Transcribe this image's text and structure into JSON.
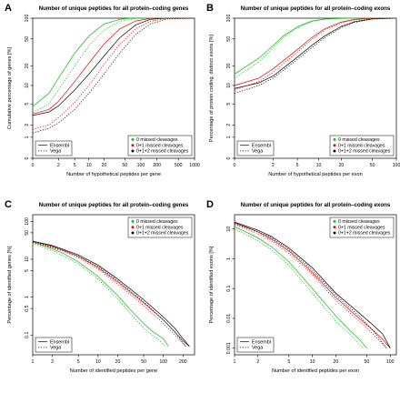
{
  "colors": {
    "series": [
      "#22bb22",
      "#dd1111",
      "#111111"
    ]
  },
  "legend_styles": {
    "ensembl": "solid",
    "vega": "dotted"
  },
  "chart_data": [
    {
      "panel": "A",
      "type": "line",
      "title": "Number of unique peptides for all protein–coding genes",
      "xlabel": "Number of hypothetical peptides per gene",
      "ylabel": "Cumulative percentage of genes [%]",
      "xscale": "log1p",
      "yscale": "log1p",
      "xlim": [
        0,
        1000
      ],
      "ylim": [
        0,
        100
      ],
      "xticks": [
        0,
        2,
        5,
        10,
        20,
        50,
        100,
        200,
        500,
        1000
      ],
      "yticks": [
        0,
        1,
        2,
        5,
        10,
        20,
        50,
        100
      ],
      "legend_position": "bottom",
      "legend_sources": [
        "Ensembl",
        "Vega"
      ],
      "legend_series": [
        "0 missed cleavages",
        "0+1 missed cleavages",
        "0+1+2 missed cleavages"
      ],
      "series": [
        {
          "name": "0 missed cleavages",
          "source": "Ensembl",
          "x": [
            0,
            1,
            2,
            5,
            10,
            20,
            40,
            60,
            100,
            200,
            1000
          ],
          "y": [
            4.5,
            7.5,
            13,
            31,
            55,
            82,
            96,
            99,
            100,
            100,
            100
          ]
        },
        {
          "name": "0+1 missed cleavages",
          "source": "Ensembl",
          "x": [
            0,
            1,
            2,
            5,
            10,
            20,
            40,
            80,
            150,
            300,
            1000
          ],
          "y": [
            3.3,
            4,
            5.5,
            11.5,
            22,
            42,
            70,
            91,
            99,
            100,
            100
          ]
        },
        {
          "name": "0+1+2 missed cleavages",
          "source": "Ensembl",
          "x": [
            0,
            1,
            2,
            5,
            10,
            20,
            40,
            80,
            150,
            300,
            1000
          ],
          "y": [
            3.1,
            3.6,
            4.6,
            8.5,
            15,
            28,
            52,
            80,
            96,
            100,
            100
          ]
        },
        {
          "name": "0 missed cleavages",
          "source": "Vega",
          "x": [
            0,
            1,
            2,
            5,
            10,
            20,
            40,
            80,
            150,
            1000
          ],
          "y": [
            3.5,
            5,
            8.5,
            20,
            40,
            67,
            90,
            99,
            100,
            100
          ]
        },
        {
          "name": "0+1 missed cleavages",
          "source": "Vega",
          "x": [
            0,
            1,
            2,
            5,
            10,
            20,
            40,
            80,
            150,
            300,
            1000
          ],
          "y": [
            1.6,
            2,
            2.8,
            5.3,
            10,
            21,
            42,
            70,
            90,
            99,
            100
          ]
        },
        {
          "name": "0+1+2 missed cleavages",
          "source": "Vega",
          "x": [
            0,
            1,
            2,
            5,
            10,
            20,
            40,
            80,
            150,
            300,
            1000
          ],
          "y": [
            1.3,
            1.7,
            2.2,
            4,
            7.5,
            15,
            31,
            58,
            82,
            97,
            100
          ]
        }
      ]
    },
    {
      "panel": "B",
      "type": "line",
      "title": "Number of unique peptides for all protein–coding exons",
      "xlabel": "Number of hypothetical peptides per exon",
      "ylabel": "Percentage of protein coding, distinct exons [%]",
      "xscale": "log1p",
      "yscale": "log1p",
      "xlim": [
        0,
        100
      ],
      "ylim": [
        0,
        100
      ],
      "xticks": [
        0,
        2,
        5,
        10,
        20,
        50,
        100
      ],
      "yticks": [
        0,
        1,
        2,
        5,
        10,
        20,
        50,
        100
      ],
      "legend_position": "bottom",
      "legend_sources": [
        "Ensembl",
        "Vega"
      ],
      "legend_series": [
        "0 missed cleavages",
        "0+1 missed cleavages",
        "0+1+2 missed cleavages"
      ],
      "series": [
        {
          "name": "0 missed cleavages",
          "source": "Ensembl",
          "x": [
            0,
            1,
            2,
            3,
            5,
            8,
            12,
            20,
            40,
            100
          ],
          "y": [
            15,
            26,
            40,
            55,
            75,
            91,
            97,
            99.5,
            100,
            100
          ]
        },
        {
          "name": "0+1 missed cleavages",
          "source": "Ensembl",
          "x": [
            0,
            1,
            2,
            5,
            8,
            12,
            20,
            30,
            50,
            100
          ],
          "y": [
            10,
            13,
            18,
            35,
            52,
            70,
            88,
            96,
            99.5,
            100
          ]
        },
        {
          "name": "0+1+2 missed cleavages",
          "source": "Ensembl",
          "x": [
            0,
            1,
            2,
            5,
            8,
            12,
            20,
            30,
            50,
            100
          ],
          "y": [
            9,
            11,
            14,
            27,
            40,
            55,
            76,
            89,
            98,
            100
          ]
        },
        {
          "name": "0 missed cleavages",
          "source": "Vega",
          "x": [
            0,
            1,
            2,
            3,
            5,
            8,
            12,
            20,
            40,
            100
          ],
          "y": [
            13,
            23,
            37,
            52,
            72,
            89,
            96,
            99.5,
            100,
            100
          ]
        },
        {
          "name": "0+1 missed cleavages",
          "source": "Vega",
          "x": [
            0,
            1,
            2,
            5,
            8,
            12,
            20,
            30,
            50,
            100
          ],
          "y": [
            8.5,
            11.5,
            16,
            32,
            49,
            67,
            86,
            95,
            99.5,
            100
          ]
        },
        {
          "name": "0+1+2 missed cleavages",
          "source": "Vega",
          "x": [
            0,
            1,
            2,
            5,
            8,
            12,
            20,
            30,
            50,
            100
          ],
          "y": [
            7.5,
            10,
            13,
            25,
            37,
            52,
            73,
            87,
            97,
            100
          ]
        }
      ]
    },
    {
      "panel": "C",
      "type": "line",
      "title": "Number of unique peptides for all protein–coding genes",
      "xlabel": "Number of identified peptides per gene",
      "ylabel": "Percentage of identified genes [%]",
      "xscale": "log",
      "yscale": "log",
      "xlim": [
        1,
        300
      ],
      "ylim": [
        0.03,
        150
      ],
      "xticks": [
        1,
        2,
        5,
        10,
        20,
        50,
        100,
        200
      ],
      "yticks": [
        0.1,
        0.5,
        1,
        5,
        10,
        50,
        100
      ],
      "legend_position": "top-right / bottom-left",
      "legend_sources": [
        "Ensembl",
        "Vega"
      ],
      "legend_series": [
        "0 missed cleavages",
        "0+1 missed cleavages",
        "0+1+2 missed cleavages"
      ],
      "series": [
        {
          "name": "0 missed cleavages",
          "source": "Ensembl",
          "x": [
            1,
            2,
            3,
            5,
            10,
            20,
            30,
            50,
            70,
            100,
            120
          ],
          "y": [
            28,
            19,
            14,
            8.5,
            3.5,
            1.1,
            0.5,
            0.2,
            0.12,
            0.08,
            0.05
          ]
        },
        {
          "name": "0+1 missed cleavages",
          "source": "Ensembl",
          "x": [
            1,
            2,
            3,
            5,
            10,
            20,
            50,
            100,
            150,
            200,
            250
          ],
          "y": [
            30,
            22,
            17,
            12,
            6,
            2.5,
            0.7,
            0.25,
            0.12,
            0.07,
            0.05
          ]
        },
        {
          "name": "0+1+2 missed cleavages",
          "source": "Ensembl",
          "x": [
            1,
            2,
            3,
            5,
            10,
            20,
            50,
            100,
            150,
            200,
            250
          ],
          "y": [
            30,
            23,
            18,
            13,
            7,
            3,
            0.85,
            0.3,
            0.15,
            0.08,
            0.05
          ]
        },
        {
          "name": "0 missed cleavages",
          "source": "Vega",
          "x": [
            1,
            2,
            3,
            5,
            10,
            20,
            30,
            50,
            80,
            110
          ],
          "y": [
            26,
            17,
            12,
            7.5,
            3,
            0.9,
            0.4,
            0.15,
            0.08,
            0.05
          ]
        },
        {
          "name": "0+1 missed cleavages",
          "source": "Vega",
          "x": [
            1,
            2,
            3,
            5,
            10,
            20,
            50,
            100,
            150,
            220
          ],
          "y": [
            28,
            20,
            16,
            11,
            5.5,
            2.2,
            0.6,
            0.2,
            0.1,
            0.05
          ]
        },
        {
          "name": "0+1+2 missed cleavages",
          "source": "Vega",
          "x": [
            1,
            2,
            3,
            5,
            10,
            20,
            50,
            100,
            150,
            220
          ],
          "y": [
            29,
            21,
            17,
            12,
            6.5,
            2.7,
            0.75,
            0.25,
            0.12,
            0.05
          ]
        }
      ]
    },
    {
      "panel": "D",
      "type": "line",
      "title": "Number of unique peptides for all protein–coding exons",
      "xlabel": "Number of identified peptides per exon",
      "ylabel": "Percentage of identified exons [%]",
      "xscale": "log",
      "yscale": "log",
      "xlim": [
        1,
        120
      ],
      "ylim": [
        0.0006,
        30
      ],
      "xticks": [
        1,
        2,
        5,
        10,
        20,
        50,
        100
      ],
      "yticks": [
        0.001,
        0.01,
        0.1,
        1,
        10
      ],
      "legend_position": "top-right / bottom-left",
      "legend_sources": [
        "Ensembl",
        "Vega"
      ],
      "legend_series": [
        "0 missed cleavages",
        "0+1 missed cleavages",
        "0+1+2 missed cleavages"
      ],
      "series": [
        {
          "name": "0 missed cleavages",
          "source": "Ensembl",
          "x": [
            1,
            2,
            3,
            5,
            10,
            20,
            30,
            40,
            50
          ],
          "y": [
            12,
            5,
            2.5,
            0.8,
            0.1,
            0.012,
            0.004,
            0.002,
            0.001
          ]
        },
        {
          "name": "0+1 missed cleavages",
          "source": "Ensembl",
          "x": [
            1,
            2,
            3,
            5,
            10,
            20,
            40,
            60,
            80,
            100
          ],
          "y": [
            16,
            8,
            4.5,
            1.8,
            0.35,
            0.05,
            0.01,
            0.004,
            0.002,
            0.001
          ]
        },
        {
          "name": "0+1+2 missed cleavages",
          "source": "Ensembl",
          "x": [
            1,
            2,
            3,
            5,
            10,
            20,
            40,
            60,
            80,
            100
          ],
          "y": [
            17,
            9,
            5.5,
            2.3,
            0.5,
            0.07,
            0.015,
            0.006,
            0.003,
            0.001
          ]
        },
        {
          "name": "0 missed cleavages",
          "source": "Vega",
          "x": [
            1,
            2,
            3,
            5,
            10,
            20,
            30,
            45
          ],
          "y": [
            10,
            4,
            2,
            0.6,
            0.07,
            0.008,
            0.003,
            0.001
          ]
        },
        {
          "name": "0+1 missed cleavages",
          "source": "Vega",
          "x": [
            1,
            2,
            3,
            5,
            10,
            20,
            40,
            60,
            90
          ],
          "y": [
            14,
            7,
            4,
            1.5,
            0.3,
            0.04,
            0.008,
            0.003,
            0.001
          ]
        },
        {
          "name": "0+1+2 missed cleavages",
          "source": "Vega",
          "x": [
            1,
            2,
            3,
            5,
            10,
            20,
            40,
            60,
            90
          ],
          "y": [
            15,
            8,
            5,
            2,
            0.42,
            0.06,
            0.012,
            0.004,
            0.001
          ]
        }
      ]
    }
  ]
}
